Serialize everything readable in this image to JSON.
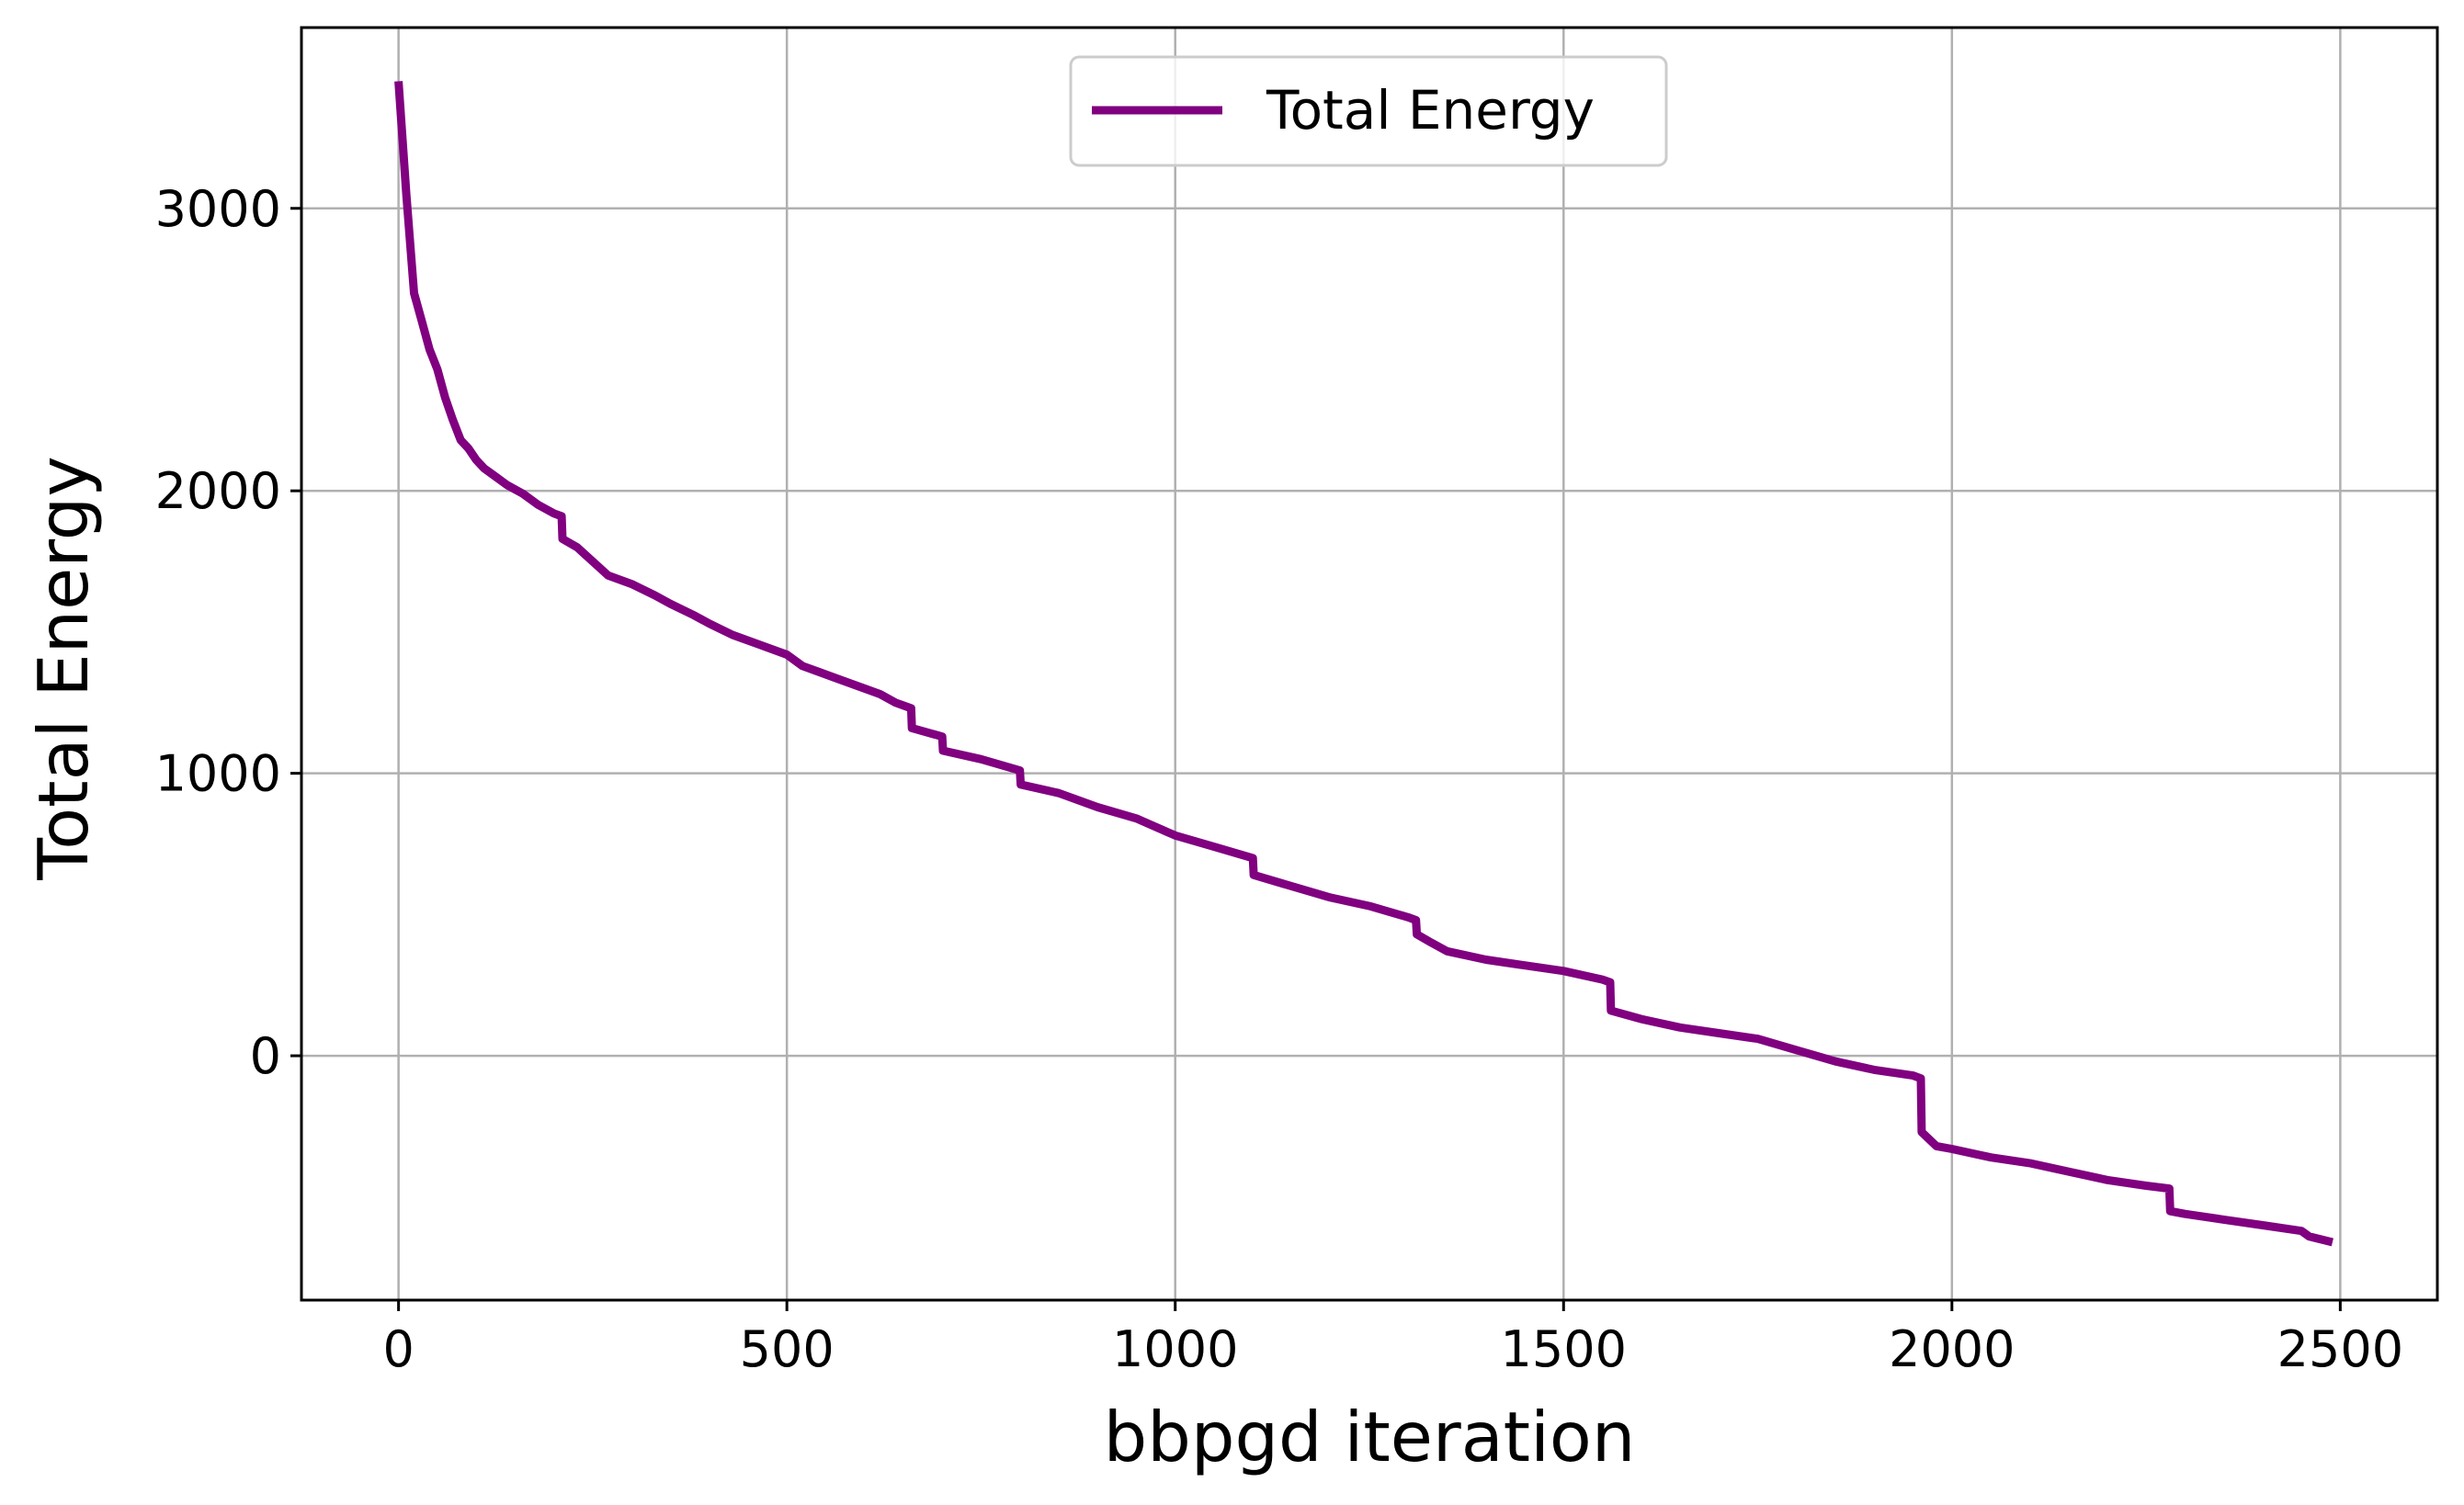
{
  "chart_data": {
    "type": "line",
    "title": "",
    "xlabel": "bbpgd iteration",
    "ylabel": "Total Energy",
    "xlim": [
      -125,
      2625
    ],
    "ylim": [
      -865,
      3640
    ],
    "xticks": [
      0,
      500,
      1000,
      1500,
      2000,
      2500
    ],
    "yticks": [
      0,
      1000,
      2000,
      3000
    ],
    "grid": true,
    "legend": {
      "position": "top-center",
      "entries": [
        "Total Energy"
      ]
    },
    "series": [
      {
        "name": "Total Energy",
        "color": "#800080",
        "x": [
          0,
          10,
          20,
          30,
          40,
          50,
          60,
          70,
          80,
          90,
          100,
          110,
          120,
          140,
          160,
          180,
          200,
          210,
          211,
          230,
          250,
          270,
          300,
          330,
          350,
          380,
          400,
          430,
          460,
          500,
          520,
          560,
          600,
          620,
          640,
          660,
          661,
          700,
          701,
          750,
          800,
          801,
          850,
          900,
          950,
          1000,
          1050,
          1100,
          1101,
          1150,
          1200,
          1250,
          1300,
          1310,
          1311,
          1330,
          1350,
          1400,
          1450,
          1500,
          1550,
          1560,
          1561,
          1600,
          1650,
          1700,
          1750,
          1800,
          1850,
          1900,
          1950,
          1960,
          1961,
          1980,
          2000,
          2050,
          2100,
          2150,
          2200,
          2250,
          2280,
          2281,
          2300,
          2350,
          2400,
          2450,
          2460,
          2490
        ],
        "y": [
          3450,
          3050,
          2700,
          2600,
          2500,
          2430,
          2330,
          2250,
          2180,
          2150,
          2110,
          2080,
          2060,
          2020,
          1990,
          1950,
          1920,
          1910,
          1830,
          1800,
          1750,
          1700,
          1670,
          1630,
          1600,
          1560,
          1530,
          1490,
          1460,
          1420,
          1380,
          1340,
          1300,
          1280,
          1250,
          1230,
          1160,
          1130,
          1080,
          1050,
          1010,
          960,
          930,
          880,
          840,
          780,
          740,
          700,
          640,
          600,
          560,
          530,
          490,
          480,
          430,
          400,
          370,
          340,
          320,
          300,
          270,
          260,
          160,
          130,
          100,
          80,
          60,
          20,
          -20,
          -50,
          -70,
          -80,
          -270,
          -320,
          -330,
          -360,
          -380,
          -410,
          -440,
          -460,
          -470,
          -550,
          -560,
          -580,
          -600,
          -620,
          -640,
          -660
        ]
      }
    ]
  }
}
